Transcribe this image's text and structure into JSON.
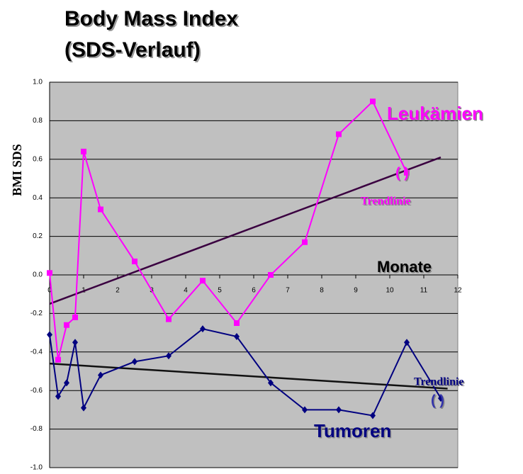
{
  "chart_data": {
    "type": "line",
    "title": [
      "Body Mass Index",
      "(SDS-Verlauf)"
    ],
    "y_label": "BMI SDS",
    "x_label": "Monate",
    "xlim": [
      0,
      12
    ],
    "xticks": [
      0,
      1,
      2,
      3,
      4,
      5,
      6,
      7,
      8,
      9,
      10,
      11,
      12
    ],
    "ylim": [
      -1.0,
      1.0
    ],
    "yticks": [
      {
        "value": -1.0,
        "label": "-1.0"
      },
      -0.8,
      -0.6,
      -0.4,
      -0.2,
      {
        "value": 0.0,
        "label": "0.0"
      },
      0.2,
      0.4,
      0.6,
      0.8,
      {
        "value": 1.0,
        "label": "1.0"
      }
    ],
    "grid": true,
    "series": [
      {
        "name": "Leukämien",
        "color": "#ff00ff",
        "marker": "square",
        "x": [
          0,
          0.25,
          0.5,
          0.75,
          1,
          1.5,
          2.5,
          3.5,
          4.5,
          5.5,
          6.5,
          7.5,
          8.5,
          9.5,
          10.5
        ],
        "values": [
          0.01,
          -0.44,
          -0.26,
          -0.22,
          0.64,
          0.34,
          0.07,
          -0.23,
          -0.03,
          -0.25,
          0.0,
          0.17,
          0.73,
          0.9,
          0.53
        ]
      },
      {
        "name": "Tumoren",
        "color": "#000080",
        "marker": "diamond",
        "x": [
          0,
          0.25,
          0.5,
          0.75,
          1,
          1.5,
          2.5,
          3.5,
          4.5,
          5.5,
          6.5,
          7.5,
          8.5,
          9.5,
          10.5,
          11.5
        ],
        "values": [
          -0.31,
          -0.63,
          -0.56,
          -0.35,
          -0.69,
          -0.52,
          -0.45,
          -0.42,
          -0.28,
          -0.32,
          -0.56,
          -0.7,
          -0.7,
          -0.73,
          -0.35,
          -0.64
        ]
      }
    ],
    "trendlines": [
      {
        "color": "#3a0040",
        "x": [
          0,
          11.5
        ],
        "values": [
          -0.15,
          0.61
        ]
      },
      {
        "color": "#111111",
        "x": [
          0,
          11.7
        ],
        "values": [
          -0.46,
          -0.59
        ]
      }
    ],
    "annotations": [
      "( )",
      "Trendlinie",
      "Trendlinie",
      "( )"
    ]
  }
}
